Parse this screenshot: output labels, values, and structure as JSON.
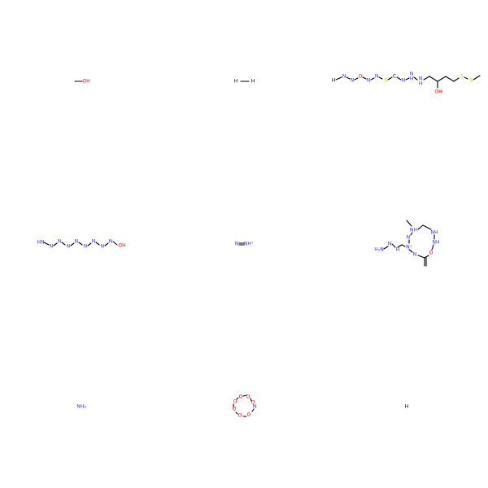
{
  "colors": {
    "O": "#ff0000",
    "N": "#3333ff",
    "S": "#cccc00",
    "C": "#000000"
  },
  "molecules": [
    {
      "atoms": [
        {
          "text": "OH",
          "el": "O"
        }
      ]
    },
    {
      "atoms": [
        {
          "text": "H",
          "el": "C"
        },
        {
          "text": "H",
          "el": "C"
        }
      ]
    },
    {
      "atoms": [
        {
          "text": "H",
          "el": "C"
        },
        {
          "text": "N",
          "el": "N"
        },
        {
          "text": "N",
          "el": "N"
        },
        {
          "text": "O",
          "el": "O"
        },
        {
          "text": "N",
          "el": "N"
        },
        {
          "text": "N",
          "el": "N"
        },
        {
          "text": "S",
          "el": "S"
        },
        {
          "text": "C",
          "el": "C"
        },
        {
          "text": "N",
          "el": "N"
        },
        {
          "text": "N",
          "el": "N"
        },
        {
          "text": "H",
          "el": "N"
        },
        {
          "text": "N",
          "el": "N"
        },
        {
          "text": "H",
          "el": "N"
        },
        {
          "text": "OH",
          "el": "O"
        },
        {
          "text": "S",
          "el": "S"
        },
        {
          "text": "S",
          "el": "S"
        }
      ]
    },
    {
      "atoms": [
        {
          "text": "HN",
          "el": "N"
        },
        {
          "text": "N",
          "el": "N"
        },
        {
          "text": "N",
          "el": "N"
        },
        {
          "text": "N",
          "el": "N"
        },
        {
          "text": "N",
          "el": "N"
        },
        {
          "text": "N",
          "el": "N"
        },
        {
          "text": "N",
          "el": "N"
        },
        {
          "text": "N",
          "el": "N"
        },
        {
          "text": "N",
          "el": "N"
        },
        {
          "text": "OH",
          "el": "O"
        }
      ]
    },
    {
      "atoms": [
        {
          "text": "N",
          "el": "N"
        },
        {
          "text": "NH⁺",
          "el": "N"
        }
      ]
    },
    {
      "atoms": [
        {
          "text": "NH⁺",
          "el": "N"
        },
        {
          "text": "NH",
          "el": "N"
        },
        {
          "text": "NH",
          "el": "N"
        },
        {
          "text": "O",
          "el": "O"
        },
        {
          "text": "N",
          "el": "N"
        },
        {
          "text": "N⁺",
          "el": "N"
        },
        {
          "text": "N",
          "el": "N"
        },
        {
          "text": "H₂N",
          "el": "N"
        },
        {
          "text": "N",
          "el": "N"
        },
        {
          "text": "H",
          "el": "N"
        }
      ]
    },
    {
      "atoms": [
        {
          "text": "NH₃",
          "el": "N"
        }
      ]
    },
    {
      "atoms": [
        {
          "text": "O",
          "el": "O"
        },
        {
          "text": "O",
          "el": "O"
        },
        {
          "text": "O",
          "el": "O"
        },
        {
          "text": "N",
          "el": "N"
        },
        {
          "text": "O",
          "el": "O"
        },
        {
          "text": "O",
          "el": "O"
        },
        {
          "text": "O",
          "el": "O"
        },
        {
          "text": "O",
          "el": "O"
        }
      ]
    },
    {
      "atoms": [
        {
          "text": "H",
          "el": "C"
        }
      ]
    }
  ]
}
